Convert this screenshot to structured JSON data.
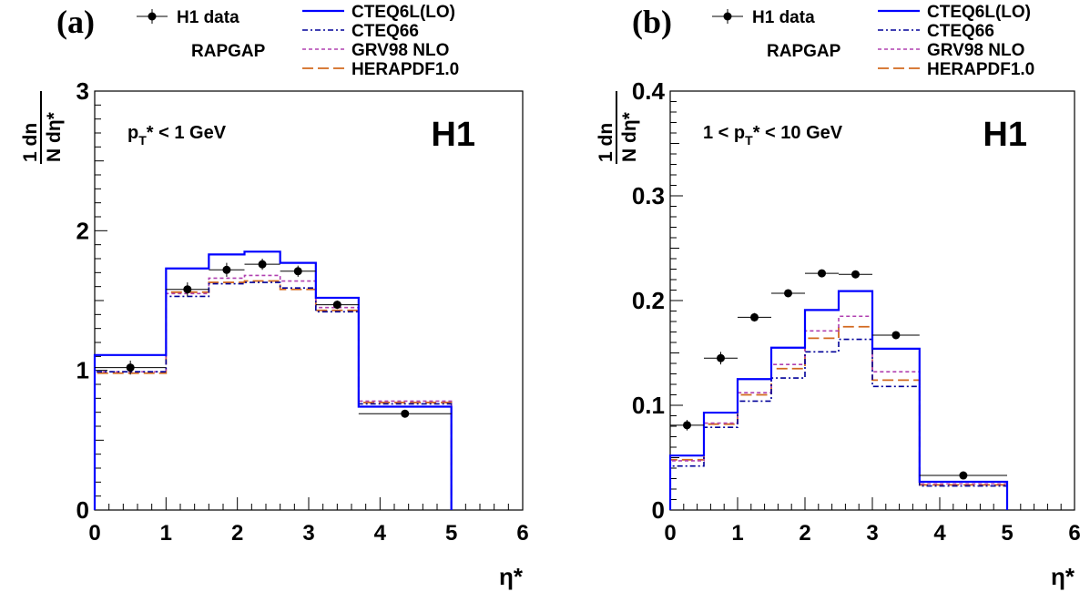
{
  "legend": [
    {
      "key": "data",
      "label": "H1 data",
      "color": "#000000",
      "style": "marker"
    },
    {
      "key": "rapgap",
      "label": "RAPGAP",
      "color": "#000000",
      "style": "none"
    },
    {
      "key": "cteq6l",
      "label": "CTEQ6L(LO)",
      "color": "#0000ff",
      "style": "solid"
    },
    {
      "key": "cteq66",
      "label": "CTEQ66",
      "color": "#000099",
      "style": "dashdot"
    },
    {
      "key": "grv98",
      "label": "GRV98 NLO",
      "color": "#b040b0",
      "style": "dotted"
    },
    {
      "key": "herapdf",
      "label": "HERAPDF1.0",
      "color": "#d2691e",
      "style": "longdash"
    }
  ],
  "chart_data": [
    {
      "type": "histogram",
      "panel_label": "(a)",
      "experiment_label": "H1",
      "cut_label": {
        "pre": "",
        "p": "p",
        "sub": "T",
        "post": "* < 1 GeV"
      },
      "xlabel": "η*",
      "ylabel": {
        "num": "1 dn",
        "den": "N dη*"
      },
      "xlim": [
        0,
        6
      ],
      "ylim": [
        0,
        3
      ],
      "xticks": [
        "0",
        "1",
        "2",
        "3",
        "4",
        "5",
        "6"
      ],
      "yticks": [
        "0",
        "1",
        "2",
        "3"
      ],
      "bin_edges": [
        0,
        1.0,
        1.6,
        2.1,
        2.6,
        3.1,
        3.7,
        5.0
      ],
      "series": [
        {
          "key": "cteq6l",
          "values": [
            1.11,
            1.73,
            1.83,
            1.85,
            1.77,
            1.52,
            0.74
          ]
        },
        {
          "key": "cteq66",
          "values": [
            0.99,
            1.53,
            1.62,
            1.63,
            1.59,
            1.42,
            0.76
          ]
        },
        {
          "key": "grv98",
          "values": [
            0.99,
            1.55,
            1.66,
            1.68,
            1.64,
            1.45,
            0.78
          ]
        },
        {
          "key": "herapdf",
          "values": [
            0.98,
            1.56,
            1.63,
            1.64,
            1.58,
            1.43,
            0.77
          ]
        }
      ],
      "data": {
        "x": [
          0.5,
          1.3,
          1.85,
          2.35,
          2.85,
          3.4,
          4.35
        ],
        "y": [
          1.02,
          1.58,
          1.72,
          1.76,
          1.71,
          1.47,
          0.69
        ],
        "xerr": [
          0.5,
          0.3,
          0.25,
          0.25,
          0.25,
          0.3,
          0.65
        ],
        "yerr": [
          0.05,
          0.05,
          0.05,
          0.04,
          0.04,
          0.03,
          0.02
        ]
      }
    },
    {
      "type": "histogram",
      "panel_label": "(b)",
      "experiment_label": "H1",
      "cut_label": {
        "pre": "1 < ",
        "p": "p",
        "sub": "T",
        "post": "* < 10 GeV"
      },
      "xlabel": "η*",
      "ylabel": {
        "num": "1 dn",
        "den": "N dη*"
      },
      "xlim": [
        0,
        6
      ],
      "ylim": [
        0,
        0.4
      ],
      "xticks": [
        "0",
        "1",
        "2",
        "3",
        "4",
        "5",
        "6"
      ],
      "yticks": [
        "0",
        "0.1",
        "0.2",
        "0.3",
        "0.4"
      ],
      "bin_edges": [
        0,
        0.5,
        1.0,
        1.5,
        2.0,
        2.5,
        3.0,
        3.7,
        5.0
      ],
      "series": [
        {
          "key": "cteq6l",
          "values": [
            0.052,
            0.093,
            0.125,
            0.155,
            0.191,
            0.209,
            0.154,
            0.027
          ]
        },
        {
          "key": "cteq66",
          "values": [
            0.042,
            0.079,
            0.104,
            0.126,
            0.151,
            0.163,
            0.118,
            0.023
          ]
        },
        {
          "key": "grv98",
          "values": [
            0.047,
            0.083,
            0.112,
            0.139,
            0.171,
            0.185,
            0.132,
            0.025
          ]
        },
        {
          "key": "herapdf",
          "values": [
            0.048,
            0.082,
            0.11,
            0.135,
            0.164,
            0.175,
            0.124,
            0.024
          ]
        }
      ],
      "data": {
        "x": [
          0.25,
          0.75,
          1.25,
          1.75,
          2.25,
          2.75,
          3.35,
          4.35
        ],
        "y": [
          0.081,
          0.145,
          0.184,
          0.207,
          0.226,
          0.225,
          0.167,
          0.033
        ],
        "xerr": [
          0.25,
          0.25,
          0.25,
          0.25,
          0.25,
          0.25,
          0.35,
          0.65
        ],
        "yerr": [
          0.005,
          0.006,
          0.004,
          0.003,
          0.003,
          0.003,
          0.003,
          0.002
        ]
      }
    }
  ]
}
